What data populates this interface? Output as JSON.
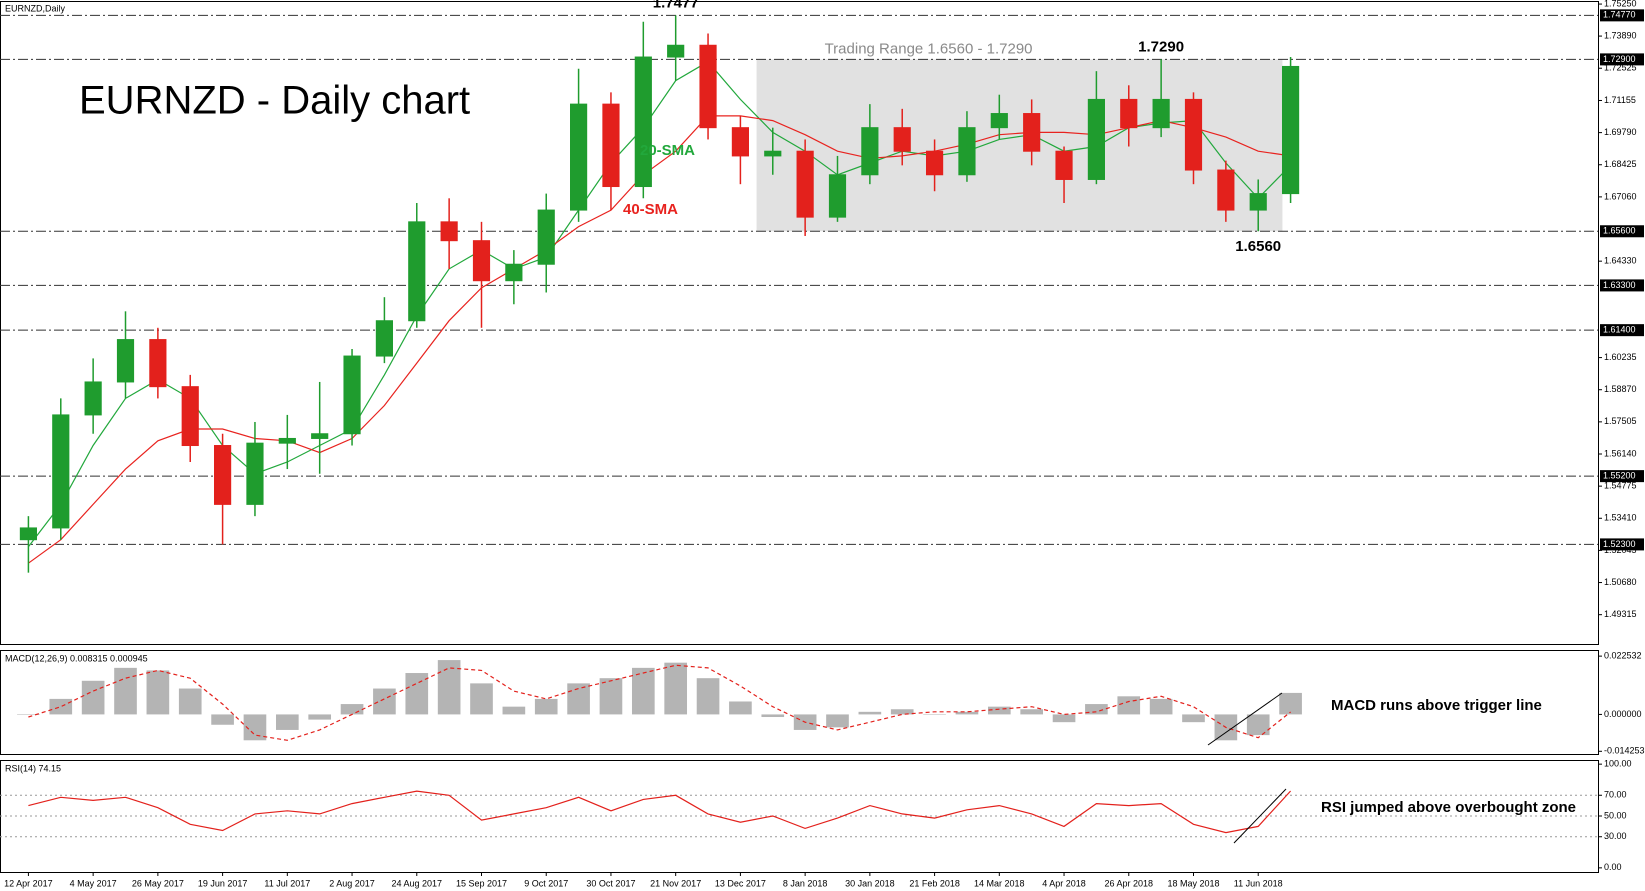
{
  "chart_data": [
    {
      "type": "candlestick",
      "title": "EURNZD - Daily chart",
      "symbol_label": "EURNZD,Daily",
      "categories": [
        "12 Apr 2017",
        null,
        "4 May 2017",
        null,
        "26 May 2017",
        null,
        "19 Jun 2017",
        null,
        "11 Jul 2017",
        null,
        "2 Aug 2017",
        null,
        "24 Aug 2017",
        null,
        "15 Sep 2017",
        null,
        "9 Oct 2017",
        null,
        "30 Oct 2017",
        null,
        "21 Nov 2017",
        null,
        "13 Dec 2017",
        null,
        "8 Jan 2018",
        null,
        "30 Jan 2018",
        null,
        "21 Feb 2018",
        null,
        "14 Mar 2018",
        null,
        "4 Apr 2018",
        null,
        "26 Apr 2018",
        null,
        "18 May 2018",
        null,
        "11 Jun 2018",
        null
      ],
      "open": [
        1.525,
        1.53,
        1.578,
        1.592,
        1.61,
        1.59,
        1.565,
        1.54,
        1.566,
        1.568,
        1.57,
        1.603,
        1.618,
        1.66,
        1.652,
        1.635,
        1.642,
        1.665,
        1.71,
        1.675,
        1.73,
        1.735,
        1.7,
        1.688,
        1.69,
        1.662,
        1.68,
        1.7,
        1.69,
        1.68,
        1.7,
        1.706,
        1.69,
        1.678,
        1.712,
        1.7,
        1.712,
        1.682,
        1.665,
        1.672
      ],
      "high": [
        1.535,
        1.585,
        1.602,
        1.622,
        1.615,
        1.595,
        1.57,
        1.575,
        1.578,
        1.592,
        1.606,
        1.628,
        1.668,
        1.67,
        1.66,
        1.648,
        1.672,
        1.725,
        1.715,
        1.745,
        1.7477,
        1.74,
        1.705,
        1.7,
        1.695,
        1.688,
        1.71,
        1.708,
        1.695,
        1.707,
        1.714,
        1.712,
        1.692,
        1.724,
        1.718,
        1.729,
        1.715,
        1.686,
        1.678,
        1.73
      ],
      "low": [
        1.511,
        1.525,
        1.57,
        1.585,
        1.585,
        1.558,
        1.523,
        1.535,
        1.555,
        1.553,
        1.565,
        1.6,
        1.615,
        1.64,
        1.615,
        1.625,
        1.63,
        1.66,
        1.665,
        1.67,
        1.72,
        1.695,
        1.676,
        1.68,
        1.654,
        1.66,
        1.676,
        1.684,
        1.673,
        1.677,
        1.695,
        1.684,
        1.668,
        1.676,
        1.692,
        1.696,
        1.676,
        1.66,
        1.656,
        1.668
      ],
      "close": [
        1.53,
        1.578,
        1.592,
        1.61,
        1.59,
        1.565,
        1.54,
        1.566,
        1.568,
        1.57,
        1.603,
        1.618,
        1.66,
        1.652,
        1.635,
        1.642,
        1.665,
        1.71,
        1.675,
        1.73,
        1.735,
        1.7,
        1.688,
        1.69,
        1.662,
        1.68,
        1.7,
        1.69,
        1.68,
        1.7,
        1.706,
        1.69,
        1.678,
        1.712,
        1.7,
        1.712,
        1.682,
        1.665,
        1.672,
        1.726
      ],
      "up_color": "#1f9c2e",
      "down_color": "#e3211c",
      "series": [
        {
          "name": "20-SMA",
          "color": "#22a83c",
          "values": [
            1.522,
            1.54,
            1.565,
            1.585,
            1.593,
            1.585,
            1.565,
            1.553,
            1.558,
            1.565,
            1.572,
            1.595,
            1.62,
            1.64,
            1.648,
            1.64,
            1.645,
            1.665,
            1.685,
            1.7,
            1.72,
            1.728,
            1.712,
            1.698,
            1.69,
            1.68,
            1.685,
            1.69,
            1.688,
            1.69,
            1.695,
            1.697,
            1.69,
            1.692,
            1.7,
            1.702,
            1.703,
            1.685,
            1.67,
            1.684
          ]
        },
        {
          "name": "40-SMA",
          "color": "#e8231f",
          "values": [
            1.515,
            1.525,
            1.54,
            1.555,
            1.567,
            1.572,
            1.572,
            1.568,
            1.567,
            1.562,
            1.568,
            1.582,
            1.6,
            1.618,
            1.632,
            1.64,
            1.648,
            1.658,
            1.665,
            1.68,
            1.69,
            1.705,
            1.705,
            1.703,
            1.697,
            1.69,
            1.687,
            1.688,
            1.69,
            1.693,
            1.697,
            1.698,
            1.698,
            1.697,
            1.7,
            1.703,
            1.7,
            1.696,
            1.69,
            1.688
          ]
        }
      ],
      "ylim": [
        1.4807,
        1.7538
      ],
      "yticks": [
        {
          "value": 1.7525,
          "label": "1.75250"
        },
        {
          "value": 1.7389,
          "label": "1.73890"
        },
        {
          "value": 1.72525,
          "label": "1.72525"
        },
        {
          "value": 1.71155,
          "label": "1.71155"
        },
        {
          "value": 1.6979,
          "label": "1.69790"
        },
        {
          "value": 1.68425,
          "label": "1.68425"
        },
        {
          "value": 1.6706,
          "label": "1.67060"
        },
        {
          "value": 1.6433,
          "label": "1.64330"
        },
        {
          "value": 1.60235,
          "label": "1.60235"
        },
        {
          "value": 1.5887,
          "label": "1.58870"
        },
        {
          "value": 1.57505,
          "label": "1.57505"
        },
        {
          "value": 1.5614,
          "label": "1.56140"
        },
        {
          "value": 1.54775,
          "label": "1.54775"
        },
        {
          "value": 1.5341,
          "label": "1.53410"
        },
        {
          "value": 1.52045,
          "label": "1.52045"
        },
        {
          "value": 1.5068,
          "label": "1.50680"
        },
        {
          "value": 1.49315,
          "label": "1.49315"
        }
      ],
      "levels": [
        {
          "value": 1.7477,
          "label": "1.74770"
        },
        {
          "value": 1.729,
          "label": "1.72900"
        },
        {
          "value": 1.656,
          "label": "1.65600"
        },
        {
          "value": 1.633,
          "label": "1.63300"
        },
        {
          "value": 1.614,
          "label": "1.61400"
        },
        {
          "value": 1.552,
          "label": "1.55200"
        },
        {
          "value": 1.523,
          "label": "1.52300"
        }
      ],
      "trading_range": {
        "label": "Trading Range 1.6560 - 1.7290",
        "low": 1.656,
        "high": 1.729,
        "start_index": 23,
        "end_index": 39
      },
      "annotations": [
        {
          "text": "1.7477",
          "index": 20,
          "value": 1.7477,
          "position": "above"
        },
        {
          "text": "1.7290",
          "index": 35,
          "value": 1.729,
          "position": "above"
        },
        {
          "text": "1.6560",
          "index": 38,
          "value": 1.656,
          "position": "below"
        }
      ]
    },
    {
      "type": "macd",
      "label": "MACD(12,26,9) 0.008315 0.000945",
      "note": "MACD runs above trigger line",
      "histogram": [
        0.0,
        0.006,
        0.013,
        0.018,
        0.017,
        0.01,
        -0.004,
        -0.01,
        -0.006,
        -0.002,
        0.004,
        0.01,
        0.016,
        0.021,
        0.012,
        0.003,
        0.006,
        0.012,
        0.014,
        0.018,
        0.02,
        0.014,
        0.005,
        -0.001,
        -0.006,
        -0.005,
        0.001,
        0.002,
        0.0,
        0.001,
        0.003,
        0.002,
        -0.003,
        0.004,
        0.007,
        0.006,
        -0.003,
        -0.01,
        -0.008,
        0.008315
      ],
      "histogram_color": "#b4b4b4",
      "signal": [
        -0.001,
        0.003,
        0.009,
        0.014,
        0.017,
        0.014,
        0.004,
        -0.008,
        -0.01,
        -0.006,
        0.0,
        0.006,
        0.012,
        0.018,
        0.017,
        0.009,
        0.006,
        0.01,
        0.013,
        0.016,
        0.019,
        0.018,
        0.011,
        0.003,
        -0.003,
        -0.006,
        -0.003,
        0.0,
        0.001,
        0.001,
        0.002,
        0.003,
        0.0,
        0.001,
        0.005,
        0.007,
        0.003,
        -0.005,
        -0.009,
        0.000945
      ],
      "signal_color": "#e3211c",
      "ylim": [
        -0.0153,
        0.0249
      ],
      "yticks": [
        0.022532,
        {
          "value": 0,
          "label": "0.000000"
        },
        -0.014253
      ]
    },
    {
      "type": "line",
      "label": "RSI(14) 74.15",
      "note": "RSI jumped above overbought zone",
      "values": [
        60,
        68,
        65,
        68,
        58,
        42,
        36,
        52,
        55,
        52,
        62,
        68,
        74,
        70,
        46,
        52,
        58,
        68,
        55,
        66,
        70,
        52,
        44,
        50,
        38,
        48,
        60,
        52,
        48,
        56,
        60,
        52,
        40,
        62,
        60,
        62,
        42,
        34,
        40,
        74.15
      ],
      "color": "#e3211c",
      "ylim": [
        -4,
        104
      ],
      "yticks": [
        {
          "value": 100,
          "label": "100.00"
        },
        {
          "value": 70,
          "label": "70.00"
        },
        {
          "value": 50,
          "label": "50.00"
        },
        {
          "value": 30,
          "label": "30.00"
        },
        {
          "value": 0,
          "label": "0.00"
        }
      ],
      "levels": [
        70,
        50,
        30
      ]
    }
  ]
}
